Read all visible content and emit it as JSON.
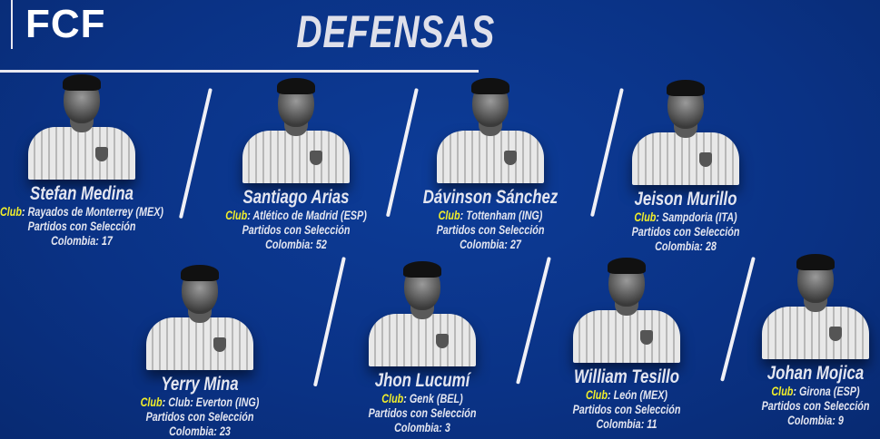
{
  "logo": "FCF",
  "title": "DEFENSAS",
  "club_label": "Club",
  "caps_label": "Partidos con Selección",
  "caps_prefix": "Colombia",
  "colors": {
    "background": "#0b3589",
    "club_label": "#f2ee2a",
    "text": "#e4e6f0"
  },
  "players": [
    {
      "name": "Stefan Medina",
      "club": "Rayados de Monterrey (MEX)",
      "caps": "17"
    },
    {
      "name": "Santiago Arias",
      "club": "Atlético de Madrid (ESP)",
      "caps": "52"
    },
    {
      "name": "Dávinson Sánchez",
      "club": "Tottenham (ING)",
      "caps": "27"
    },
    {
      "name": "Jeison Murillo",
      "club": "Sampdoria (ITA)",
      "caps": "28"
    },
    {
      "name": "Yerry Mina",
      "club": "Club: Everton (ING)",
      "caps": "23"
    },
    {
      "name": "Jhon Lucumí",
      "club": "Genk (BEL)",
      "caps": "3"
    },
    {
      "name": "William Tesillo",
      "club": "León (MEX)",
      "caps": "11"
    },
    {
      "name": "Johan Mojica",
      "club": "Girona (ESP)",
      "caps": "9"
    }
  ]
}
